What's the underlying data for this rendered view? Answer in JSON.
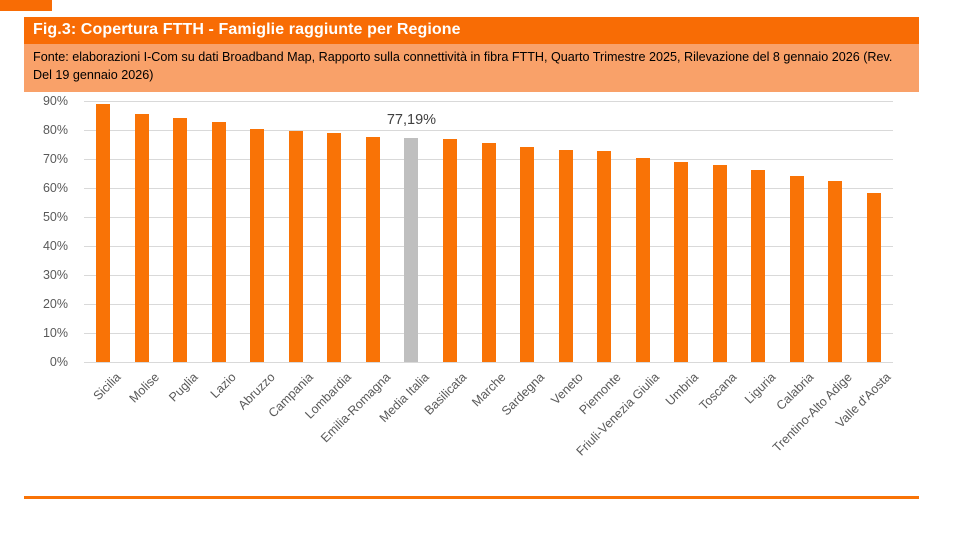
{
  "header": {
    "title": "Fig.3: Copertura FTTH - Famiglie raggiunte per Regione",
    "source": "Fonte: elaborazioni I-Com su dati Broadband Map, Rapporto sulla connettività in fibra FTTH, Quarto Trimestre 2025, Rilevazione del 8 gennaio 2026 (Rev. Del 19 gennaio 2026)",
    "title_bg": "#F86C05",
    "title_text_color": "#FFFFFF",
    "source_bg": "#F9A169"
  },
  "chart_data": {
    "type": "bar",
    "title": "Copertura FTTH - Famiglie raggiunte per Regione",
    "categories": [
      "Sicilia",
      "Molise",
      "Puglia",
      "Lazio",
      "Abruzzo",
      "Campania",
      "Lombardia",
      "Emilia-Romagna",
      "Media Italia",
      "Basilicata",
      "Marche",
      "Sardegna",
      "Veneto",
      "Piemonte",
      "Friuli-Venezia Giulia",
      "Umbria",
      "Toscana",
      "Liguria",
      "Calabria",
      "Trentino-Alto Adige",
      "Valle d'Aosta"
    ],
    "values": [
      88.8,
      85.5,
      84.0,
      82.9,
      80.5,
      79.8,
      78.9,
      77.5,
      77.19,
      77.0,
      75.6,
      74.1,
      73.2,
      72.7,
      70.5,
      68.9,
      67.9,
      66.3,
      64.2,
      62.5,
      58.4
    ],
    "unit": "%",
    "bar_color": "#F97306",
    "highlight": {
      "index": 8,
      "category": "Media Italia",
      "color": "#BFBFBF"
    },
    "annotation": {
      "text": "77,19%",
      "target": "Media Italia"
    },
    "ylim": [
      0,
      90
    ],
    "y_ticks": [
      "0%",
      "10%",
      "20%",
      "30%",
      "40%",
      "50%",
      "60%",
      "70%",
      "80%",
      "90%"
    ],
    "grid": true,
    "gridline_color": "#D9D9D9",
    "axis_text_color": "#595959",
    "legend": "none"
  },
  "footer": {
    "rule_color": "#F97306"
  }
}
